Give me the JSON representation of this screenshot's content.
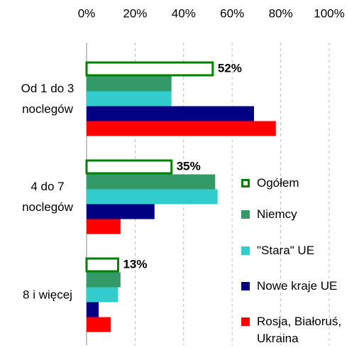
{
  "chart_data": {
    "type": "hbar",
    "categories": [
      "Od 1 do 3 noclegów",
      "4 do 7 noclegów",
      "8 i więcej"
    ],
    "series": [
      {
        "name": "Ogółem",
        "color": "#008000",
        "style": "outline",
        "values": [
          52,
          35,
          13
        ],
        "value_labels": [
          "52%",
          "35%",
          "13%"
        ]
      },
      {
        "name": "Niemcy",
        "color": "#339966",
        "values": [
          35,
          53,
          14
        ]
      },
      {
        "name": "\"Stara\" UE",
        "color": "#33cccc",
        "values": [
          35,
          54,
          13
        ]
      },
      {
        "name": "Nowe kraje UE",
        "color": "#000080",
        "values": [
          69,
          28,
          5
        ]
      },
      {
        "name": "Rosja, Białoruś, Ukraina",
        "color": "#ff0000",
        "values": [
          78,
          14,
          10
        ]
      }
    ],
    "xlim": [
      0,
      100
    ],
    "xticks": [
      {
        "value": 0,
        "label": "0%"
      },
      {
        "value": 20,
        "label": "20%"
      },
      {
        "value": 40,
        "label": "40%"
      },
      {
        "value": 60,
        "label": "60%"
      },
      {
        "value": 80,
        "label": "80%"
      },
      {
        "value": 100,
        "label": "100%"
      }
    ],
    "grid": true,
    "legend": "right"
  }
}
